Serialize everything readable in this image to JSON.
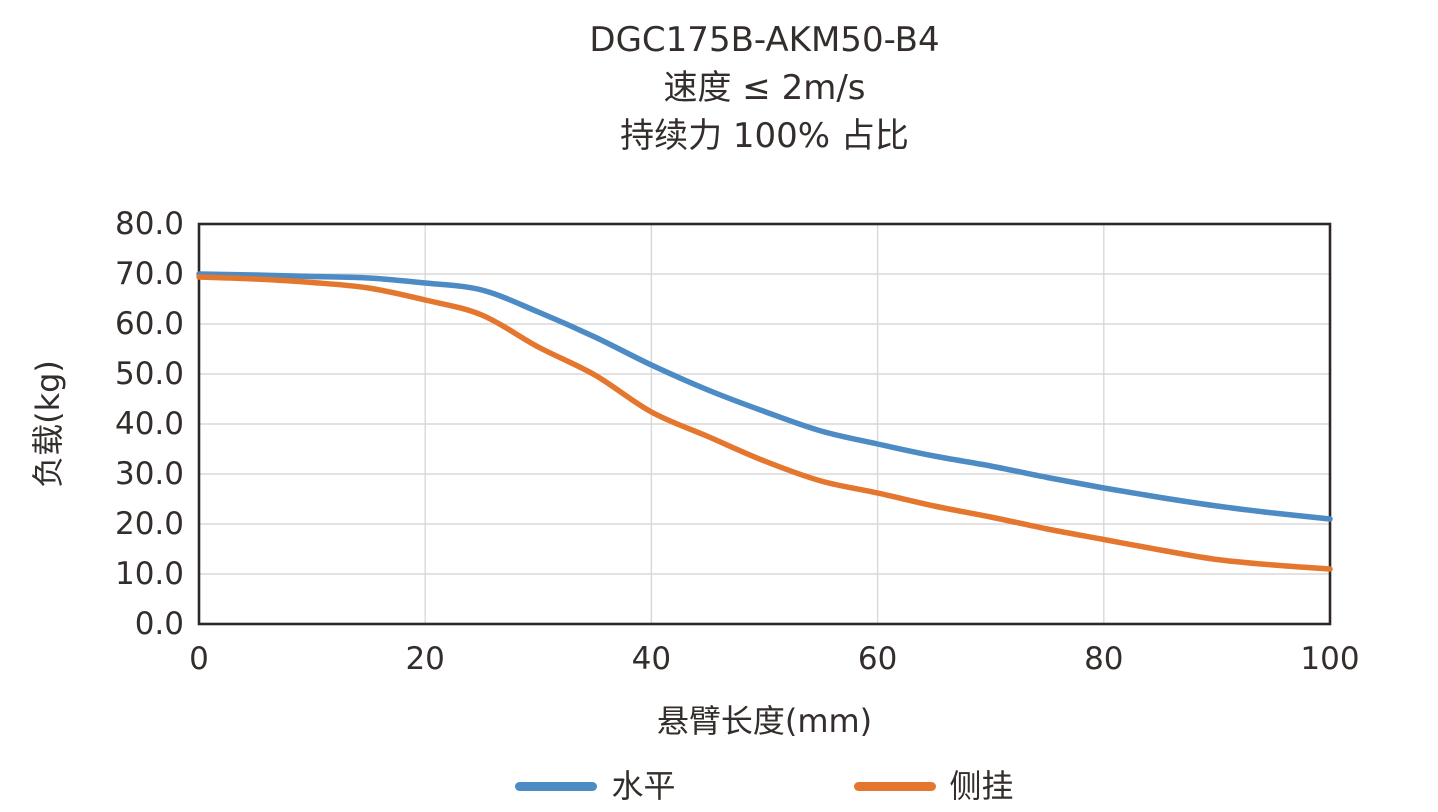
{
  "title": {
    "line1": "DGC175B-AKM50-B4",
    "line2": "速度 ≤ 2m/s",
    "line3": "持续力 100% 占比"
  },
  "chart_data": {
    "type": "line",
    "xlabel": "悬臂长度(mm)",
    "ylabel": "负载(kg)",
    "xlim": [
      0,
      100
    ],
    "ylim": [
      0,
      80
    ],
    "x_ticks": [
      0,
      20,
      40,
      60,
      80,
      100
    ],
    "y_ticks": [
      0,
      10,
      20,
      30,
      40,
      50,
      60,
      70,
      80
    ],
    "y_tick_decimals": 1,
    "grid": true,
    "legend_position": "bottom",
    "x": [
      0,
      5,
      10,
      15,
      20,
      25,
      30,
      35,
      40,
      45,
      50,
      55,
      60,
      65,
      70,
      75,
      80,
      85,
      90,
      95,
      100
    ],
    "series": [
      {
        "name": "水平",
        "color": "#4d8bc4",
        "values": [
          70.0,
          69.8,
          69.5,
          69.2,
          68.2,
          66.8,
          62.4,
          57.4,
          51.8,
          46.8,
          42.5,
          38.6,
          36.0,
          33.6,
          31.6,
          29.3,
          27.2,
          25.3,
          23.6,
          22.2,
          21.0
        ]
      },
      {
        "name": "侧挂",
        "color": "#e5762e",
        "values": [
          69.4,
          69.0,
          68.3,
          67.2,
          64.8,
          61.8,
          55.4,
          49.8,
          42.4,
          37.5,
          32.6,
          28.6,
          26.2,
          23.6,
          21.4,
          19.0,
          16.9,
          14.8,
          12.9,
          11.8,
          11.0
        ]
      }
    ]
  },
  "colors": {
    "background": "#ffffff",
    "frame": "#2d2826",
    "grid": "#d8d8d8",
    "text": "#332d2b"
  }
}
